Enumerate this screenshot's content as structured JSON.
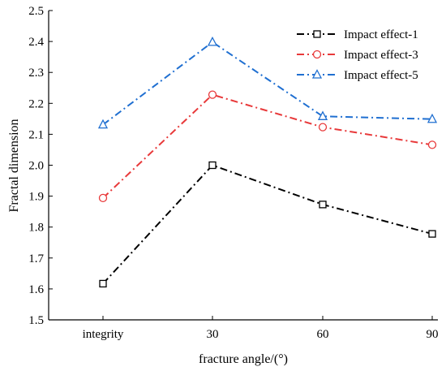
{
  "chart_data": {
    "type": "line",
    "categories": [
      "integrity",
      "30",
      "60",
      "90"
    ],
    "xlabel": "fracture angle/(°)",
    "ylabel": "Fractal dimension",
    "ylim": [
      1.5,
      2.5
    ],
    "yticks": [
      "1.5",
      "1.6",
      "1.7",
      "1.8",
      "1.9",
      "2.0",
      "2.1",
      "2.2",
      "2.3",
      "2.4",
      "2.5"
    ],
    "legend_position": "top-right",
    "series": [
      {
        "name": "Impact effect-1",
        "values": [
          1.617,
          2.0,
          1.873,
          1.778
        ],
        "color": "#000000",
        "marker": "square"
      },
      {
        "name": "Impact effect-3",
        "values": [
          1.894,
          2.228,
          2.123,
          2.066
        ],
        "color": "#e8393a",
        "marker": "circle"
      },
      {
        "name": "Impact effect-5",
        "values": [
          2.131,
          2.398,
          2.158,
          2.149
        ],
        "color": "#1f6fd1",
        "marker": "triangle"
      }
    ]
  }
}
